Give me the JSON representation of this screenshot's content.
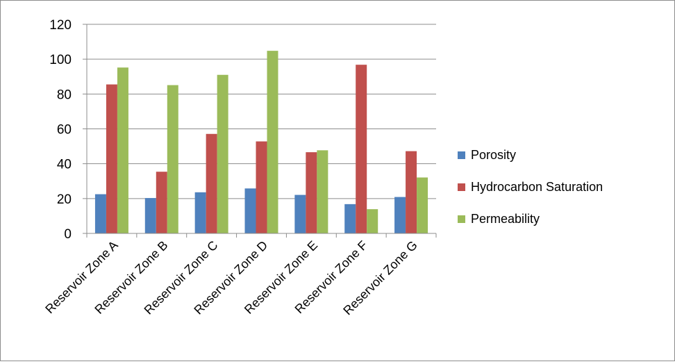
{
  "chart_data": {
    "type": "bar",
    "categories": [
      "Reservoir Zone A",
      "Reservoir Zone B",
      "Reservoir Zone C",
      "Reservoir Zone D",
      "Reservoir Zone E",
      "Reservoir Zone F",
      "Reservoir Zone G"
    ],
    "series": [
      {
        "name": "Porosity",
        "color": "#4F81BD",
        "values": [
          22.5,
          20.3,
          23.6,
          25.8,
          22.1,
          16.8,
          20.9
        ]
      },
      {
        "name": "Hydrocarbon Saturation",
        "color": "#C0504D",
        "values": [
          85.5,
          35.4,
          57.1,
          52.8,
          46.6,
          96.8,
          47.2
        ]
      },
      {
        "name": "Permeability",
        "color": "#9BBB59",
        "values": [
          95.2,
          85.1,
          91.0,
          104.8,
          47.7,
          13.9,
          32.1
        ]
      }
    ],
    "ylim": [
      0,
      120
    ],
    "yticks": [
      0,
      20,
      40,
      60,
      80,
      100,
      120
    ],
    "grid": true,
    "legend": "right"
  }
}
